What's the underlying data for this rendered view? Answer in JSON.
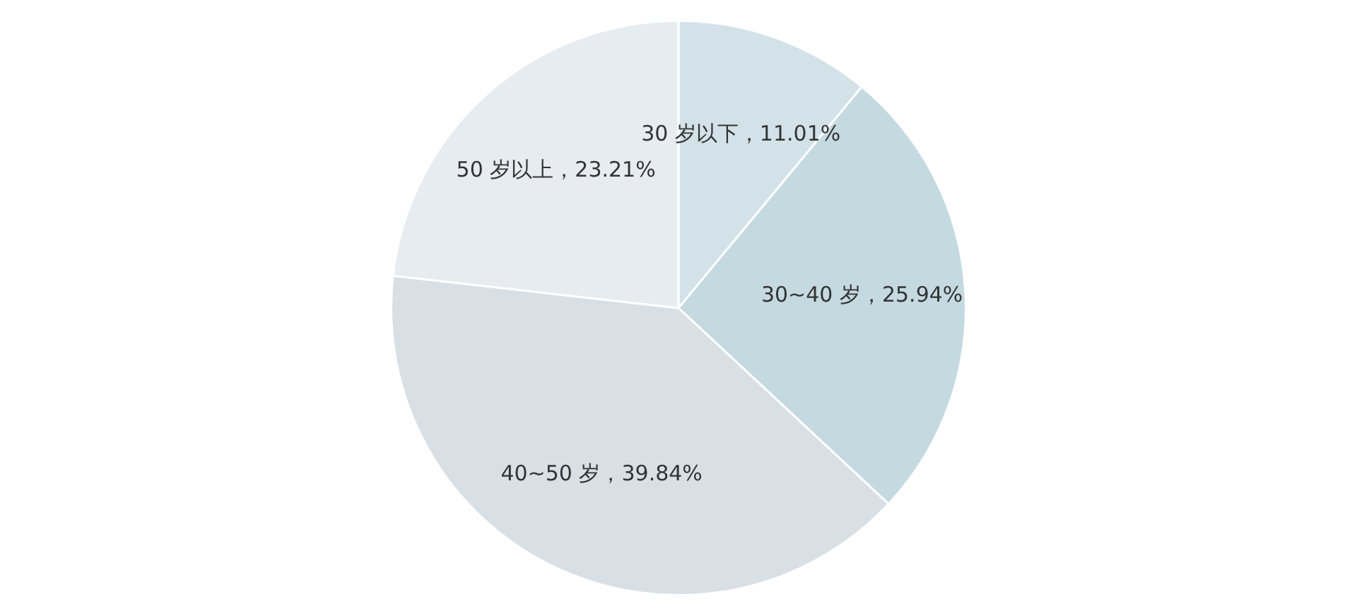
{
  "chart_data": {
    "type": "pie",
    "categories": [
      "30 岁以下",
      "30~40 岁",
      "40~50 岁",
      "50 岁以上"
    ],
    "values": [
      11.01,
      25.94,
      39.84,
      23.21
    ],
    "value_labels": [
      "11.01%",
      "25.94%",
      "39.84%",
      "23.21%"
    ],
    "colors": [
      "#d3e2e8",
      "#c5d9e1",
      "#d8e0e6",
      "#e6ecf0"
    ],
    "legend": false
  }
}
